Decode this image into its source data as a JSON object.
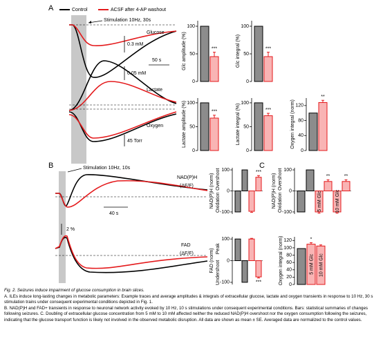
{
  "panel_a": {
    "label": "A",
    "legend": [
      "Control",
      "ACSF after 4-AP washout"
    ],
    "stimulation": "Stimulation 10Hz, 30s",
    "traces": [
      "Glucose",
      "Lactate",
      "Oxygen"
    ],
    "scale_bars": [
      "0.3 mM",
      "50 s",
      "0.05 mM",
      "45 Torr"
    ]
  },
  "panel_b": {
    "label": "B",
    "stimulation": "Stimulation 10Hz, 10s",
    "traces": [
      "NAD(P)H",
      "(ΔF/F)",
      "FAD",
      "(ΔF/F)"
    ],
    "scale_bars": [
      "40 s",
      "2 %"
    ]
  },
  "panel_c": {
    "label": "C"
  },
  "chart_data": [
    {
      "type": "bar",
      "ylabel": "Glc amplitude (%)",
      "ylim": [
        0,
        110
      ],
      "yticks": [
        0,
        50,
        100
      ],
      "bars": [
        {
          "value": 100,
          "color": "#8c8c8c",
          "edgecolor": "#000000"
        },
        {
          "value": 45,
          "error": 8,
          "color": "#f9b4b4",
          "edgecolor": "#e41a1c",
          "annotation": "***"
        }
      ]
    },
    {
      "type": "bar",
      "ylabel": "Glc integral (%)",
      "ylim": [
        0,
        110
      ],
      "yticks": [
        0,
        50,
        100
      ],
      "bars": [
        {
          "value": 100,
          "color": "#8c8c8c",
          "edgecolor": "#000000"
        },
        {
          "value": 45,
          "error": 8,
          "color": "#f9b4b4",
          "edgecolor": "#e41a1c",
          "annotation": "***"
        }
      ]
    },
    {
      "type": "bar",
      "ylabel": "Lactate amplitude (%)",
      "ylim": [
        0,
        110
      ],
      "yticks": [
        0,
        50,
        100
      ],
      "bars": [
        {
          "value": 100,
          "color": "#8c8c8c",
          "edgecolor": "#000000"
        },
        {
          "value": 68,
          "error": 6,
          "color": "#f9b4b4",
          "edgecolor": "#e41a1c",
          "annotation": "***"
        }
      ]
    },
    {
      "type": "bar",
      "ylabel": "Lactate integral (%)",
      "ylim": [
        0,
        110
      ],
      "yticks": [
        0,
        50,
        100
      ],
      "bars": [
        {
          "value": 100,
          "color": "#8c8c8c",
          "edgecolor": "#000000"
        },
        {
          "value": 73,
          "error": 5,
          "color": "#f9b4b4",
          "edgecolor": "#e41a1c",
          "annotation": "***"
        }
      ]
    },
    {
      "type": "bar",
      "ylabel": "Oxygen integral (norm)",
      "ylim": [
        0,
        140
      ],
      "yticks": [
        0,
        40,
        80,
        120
      ],
      "bars": [
        {
          "value": 100,
          "color": "#8c8c8c",
          "edgecolor": "#000000"
        },
        {
          "value": 128,
          "error": 6,
          "color": "#f9b4b4",
          "edgecolor": "#e41a1c",
          "annotation": "**"
        }
      ]
    },
    {
      "type": "bar",
      "ylabel": "NAD(P)H (norm)",
      "sublabels": [
        "Overshoot",
        "Oxidation"
      ],
      "ylim": [
        -110,
        110
      ],
      "yticks": [
        -100,
        0,
        100
      ],
      "bars": [
        {
          "value": -100,
          "color": "#8c8c8c",
          "edgecolor": "#000000"
        },
        {
          "value": 100,
          "color": "#8c8c8c",
          "edgecolor": "#000000"
        },
        {
          "value": -97,
          "error": 5,
          "color": "#f9b4b4",
          "edgecolor": "#e41a1c"
        },
        {
          "value": 65,
          "error": 8,
          "color": "#f9b4b4",
          "edgecolor": "#e41a1c",
          "annotation": "***"
        }
      ]
    },
    {
      "type": "bar",
      "ylabel": "FAD (norm)",
      "sublabels": [
        "Peak",
        "Undershoot"
      ],
      "ylim": [
        -110,
        110
      ],
      "yticks": [
        -100,
        0,
        100
      ],
      "bars": [
        {
          "value": 100,
          "color": "#8c8c8c",
          "edgecolor": "#000000"
        },
        {
          "value": -100,
          "color": "#8c8c8c",
          "edgecolor": "#000000"
        },
        {
          "value": 100,
          "error": 3,
          "color": "#f9b4b4",
          "edgecolor": "#e41a1c"
        },
        {
          "value": -75,
          "error": 5,
          "color": "#f9b4b4",
          "edgecolor": "#e41a1c",
          "annotation": "***"
        }
      ]
    },
    {
      "type": "bar",
      "ylabel": "NAD(P)H (norm)",
      "sublabels": [
        "Overshoot",
        "Oxidation"
      ],
      "ylim": [
        -110,
        110
      ],
      "yticks": [
        -100,
        0,
        100
      ],
      "bars": [
        {
          "value": -100,
          "color": "#8c8c8c",
          "edgecolor": "#000000"
        },
        {
          "value": 100,
          "color": "#8c8c8c",
          "edgecolor": "#000000"
        },
        {
          "value": -100,
          "error": 6,
          "color": "#f9b4b4",
          "edgecolor": "#e41a1c",
          "label": "5 mM Glc"
        },
        {
          "value": 45,
          "error": 8,
          "color": "#f9b4b4",
          "edgecolor": "#e41a1c",
          "annotation": "**"
        },
        {
          "value": -100,
          "error": 6,
          "color": "#f9b4b4",
          "edgecolor": "#e41a1c",
          "label": "10 mM Glc"
        },
        {
          "value": 45,
          "error": 8,
          "color": "#f9b4b4",
          "edgecolor": "#e41a1c",
          "annotation": "**"
        }
      ]
    },
    {
      "type": "bar",
      "ylabel": "Oxygen integral (norm)",
      "ylim": [
        0,
        130
      ],
      "yticks": [
        0,
        20,
        40,
        60,
        80,
        100,
        120
      ],
      "bars": [
        {
          "value": 98,
          "color": "#8c8c8c",
          "edgecolor": "#000000"
        },
        {
          "value": 110,
          "error": 4,
          "color": "#f9b4b4",
          "edgecolor": "#e41a1c",
          "label": "5 mM Glc",
          "annotation": "*"
        },
        {
          "value": 105,
          "error": 3,
          "color": "#f9b4b4",
          "edgecolor": "#e41a1c",
          "label": "10 mM Glc"
        }
      ]
    }
  ],
  "caption": {
    "title": "Fig. 2. Seizures induce impairment of glucose consumption in brain slices.",
    "paragraphs": [
      "A. ILEs induce long-lasting changes in metabolic parameters: Example traces and average amplitudes & integrals of extracellular glucose, lactate and oxygen transients in response to 10 Hz, 30 s stimulation trains under consequent experimental conditions depicted in Fig. 1.",
      "B. NAD(P)H and FAD+ transients in response to neuronal network activity evoked by 10 Hz, 10 s stimulations under consequent experimental conditions. Bars: statistical summaries of changes following seizures. C. Doubling of extracellular glucose concentration from 5 mM to 10 mM affected neither the reduced NAD(P)H overshoot nor the oxygen consumption following the seizures, indicating that the glucose transport function is likely not involved in the observed metabolic disruption. All data are shown as mean ± SE. Averaged data are normalized to the control values."
    ]
  }
}
